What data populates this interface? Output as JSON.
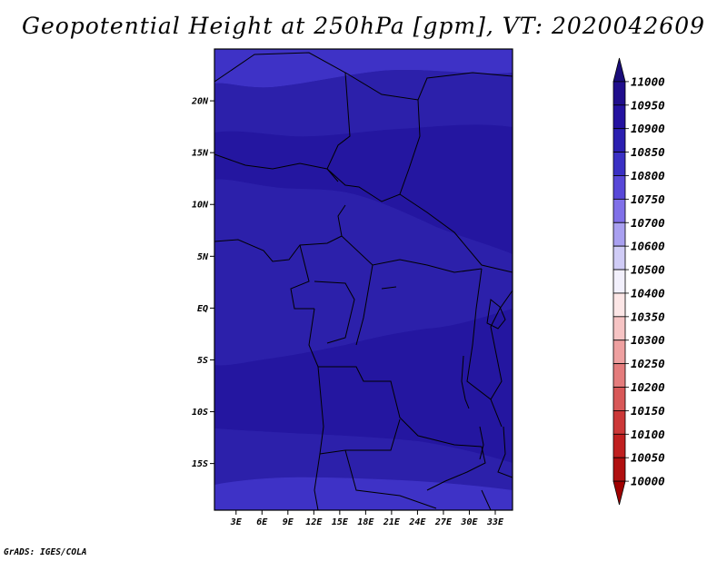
{
  "title": "Geopotential Height at 250hPa [gpm], VT: 2020042609",
  "credit": "GrADS: IGES/COLA",
  "axes": {
    "lat_ticks": [
      {
        "value": 20,
        "label": "20N"
      },
      {
        "value": 15,
        "label": "15N"
      },
      {
        "value": 10,
        "label": "10N"
      },
      {
        "value": 5,
        "label": "5N"
      },
      {
        "value": 0,
        "label": "EQ"
      },
      {
        "value": -5,
        "label": "5S"
      },
      {
        "value": -10,
        "label": "10S"
      },
      {
        "value": -15,
        "label": "15S"
      }
    ],
    "lon_ticks": [
      {
        "value": 3,
        "label": "3E"
      },
      {
        "value": 6,
        "label": "6E"
      },
      {
        "value": 9,
        "label": "9E"
      },
      {
        "value": 12,
        "label": "12E"
      },
      {
        "value": 15,
        "label": "15E"
      },
      {
        "value": 18,
        "label": "18E"
      },
      {
        "value": 21,
        "label": "21E"
      },
      {
        "value": 24,
        "label": "24E"
      },
      {
        "value": 27,
        "label": "27E"
      },
      {
        "value": 30,
        "label": "30E"
      },
      {
        "value": 33,
        "label": "33E"
      }
    ],
    "lon_range": [
      0.5,
      35
    ],
    "lat_range": [
      -19.5,
      25
    ]
  },
  "colorbar": {
    "levels": [
      "11000",
      "10950",
      "10900",
      "10850",
      "10800",
      "10750",
      "10700",
      "10600",
      "10500",
      "10400",
      "10350",
      "10300",
      "10250",
      "10200",
      "10150",
      "10100",
      "10050",
      "10000"
    ],
    "colors": [
      "#1a0c7a",
      "#200e8c",
      "#2412a0",
      "#2b1fb0",
      "#3a30c4",
      "#5848d8",
      "#8070e8",
      "#a9a0f0",
      "#d0ccf6",
      "#f2f0fc",
      "#fce6e6",
      "#f6c4c4",
      "#eea0a0",
      "#e47c7c",
      "#d85858",
      "#cc3838",
      "#c02020",
      "#b01010",
      "#a00000"
    ]
  },
  "field": {
    "background": "#2a1fa8",
    "colors": {
      "band_high": "#2416a0",
      "band_mid": "#2c20aa",
      "band_low": "#3a2ec0",
      "band_lighter": "#3e32c6"
    }
  }
}
